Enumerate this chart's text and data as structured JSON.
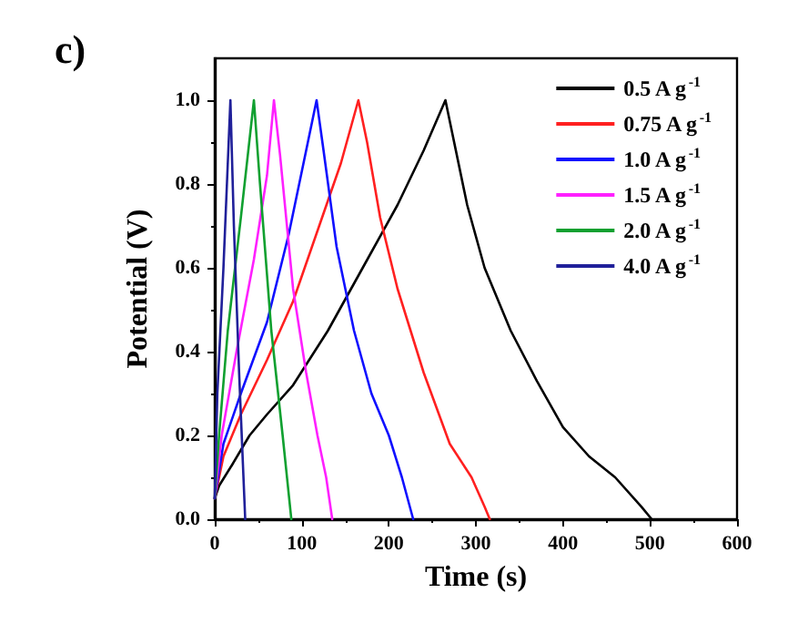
{
  "chart_data": {
    "type": "line",
    "xlabel": "Time (s)",
    "ylabel": "Potential (V)",
    "annotations": [
      "c)"
    ],
    "xlim": [
      0,
      600
    ],
    "xticks": [
      0,
      100,
      200,
      300,
      400,
      500,
      600
    ],
    "ylim": [
      0,
      1.1
    ],
    "yticks": [
      {
        "value": 0,
        "label": "0.0"
      },
      0.2,
      0.4,
      0.6,
      0.8,
      {
        "value": 1,
        "label": "1.0"
      }
    ],
    "grid": false,
    "legend": "top right",
    "marker": "none",
    "line_style": "solid",
    "series": [
      {
        "name": "0.5 A g$^{-1}$",
        "color": "#000000",
        "x": [
          0,
          5,
          20,
          40,
          60,
          90,
          130,
          170,
          210,
          240,
          265,
          270,
          290,
          310,
          340,
          370,
          400,
          430,
          460,
          490,
          502
        ],
        "values": [
          0.05,
          0.08,
          0.13,
          0.2,
          0.25,
          0.32,
          0.45,
          0.6,
          0.75,
          0.88,
          1.0,
          0.95,
          0.75,
          0.6,
          0.45,
          0.33,
          0.22,
          0.15,
          0.1,
          0.03,
          0
        ]
      },
      {
        "name": "0.75 A g$^{-1}$",
        "color": "#ff2020",
        "x": [
          0,
          10,
          30,
          60,
          90,
          120,
          145,
          165,
          175,
          190,
          210,
          240,
          270,
          295,
          310,
          316
        ],
        "values": [
          0.05,
          0.15,
          0.25,
          0.38,
          0.52,
          0.7,
          0.85,
          1.0,
          0.9,
          0.72,
          0.55,
          0.35,
          0.18,
          0.1,
          0.03,
          0
        ]
      },
      {
        "name": "1.0 A g$^{-1}$",
        "color": "#1010ff",
        "x": [
          0,
          10,
          30,
          60,
          85,
          105,
          117,
          125,
          140,
          160,
          180,
          200,
          215,
          228
        ],
        "values": [
          0.05,
          0.18,
          0.3,
          0.47,
          0.68,
          0.88,
          1.0,
          0.88,
          0.65,
          0.45,
          0.3,
          0.2,
          0.1,
          0
        ]
      },
      {
        "name": "1.5 A g$^{-1}$",
        "color": "#ff20ff",
        "x": [
          0,
          8,
          25,
          45,
          60,
          68,
          75,
          90,
          105,
          118,
          128,
          135
        ],
        "values": [
          0.05,
          0.2,
          0.4,
          0.62,
          0.82,
          1.0,
          0.87,
          0.55,
          0.35,
          0.2,
          0.1,
          0
        ]
      },
      {
        "name": "2.0 A g$^{-1}$",
        "color": "#10a030",
        "x": [
          0,
          5,
          15,
          30,
          45,
          52,
          65,
          78,
          88
        ],
        "values": [
          0.05,
          0.2,
          0.45,
          0.72,
          1.0,
          0.8,
          0.45,
          0.2,
          0
        ]
      },
      {
        "name": "4.0 A g$^{-1}$",
        "color": "#20209a",
        "x": [
          0,
          3,
          10,
          18,
          22,
          28,
          35
        ],
        "values": [
          0.05,
          0.3,
          0.6,
          1.0,
          0.7,
          0.35,
          0
        ]
      }
    ]
  }
}
